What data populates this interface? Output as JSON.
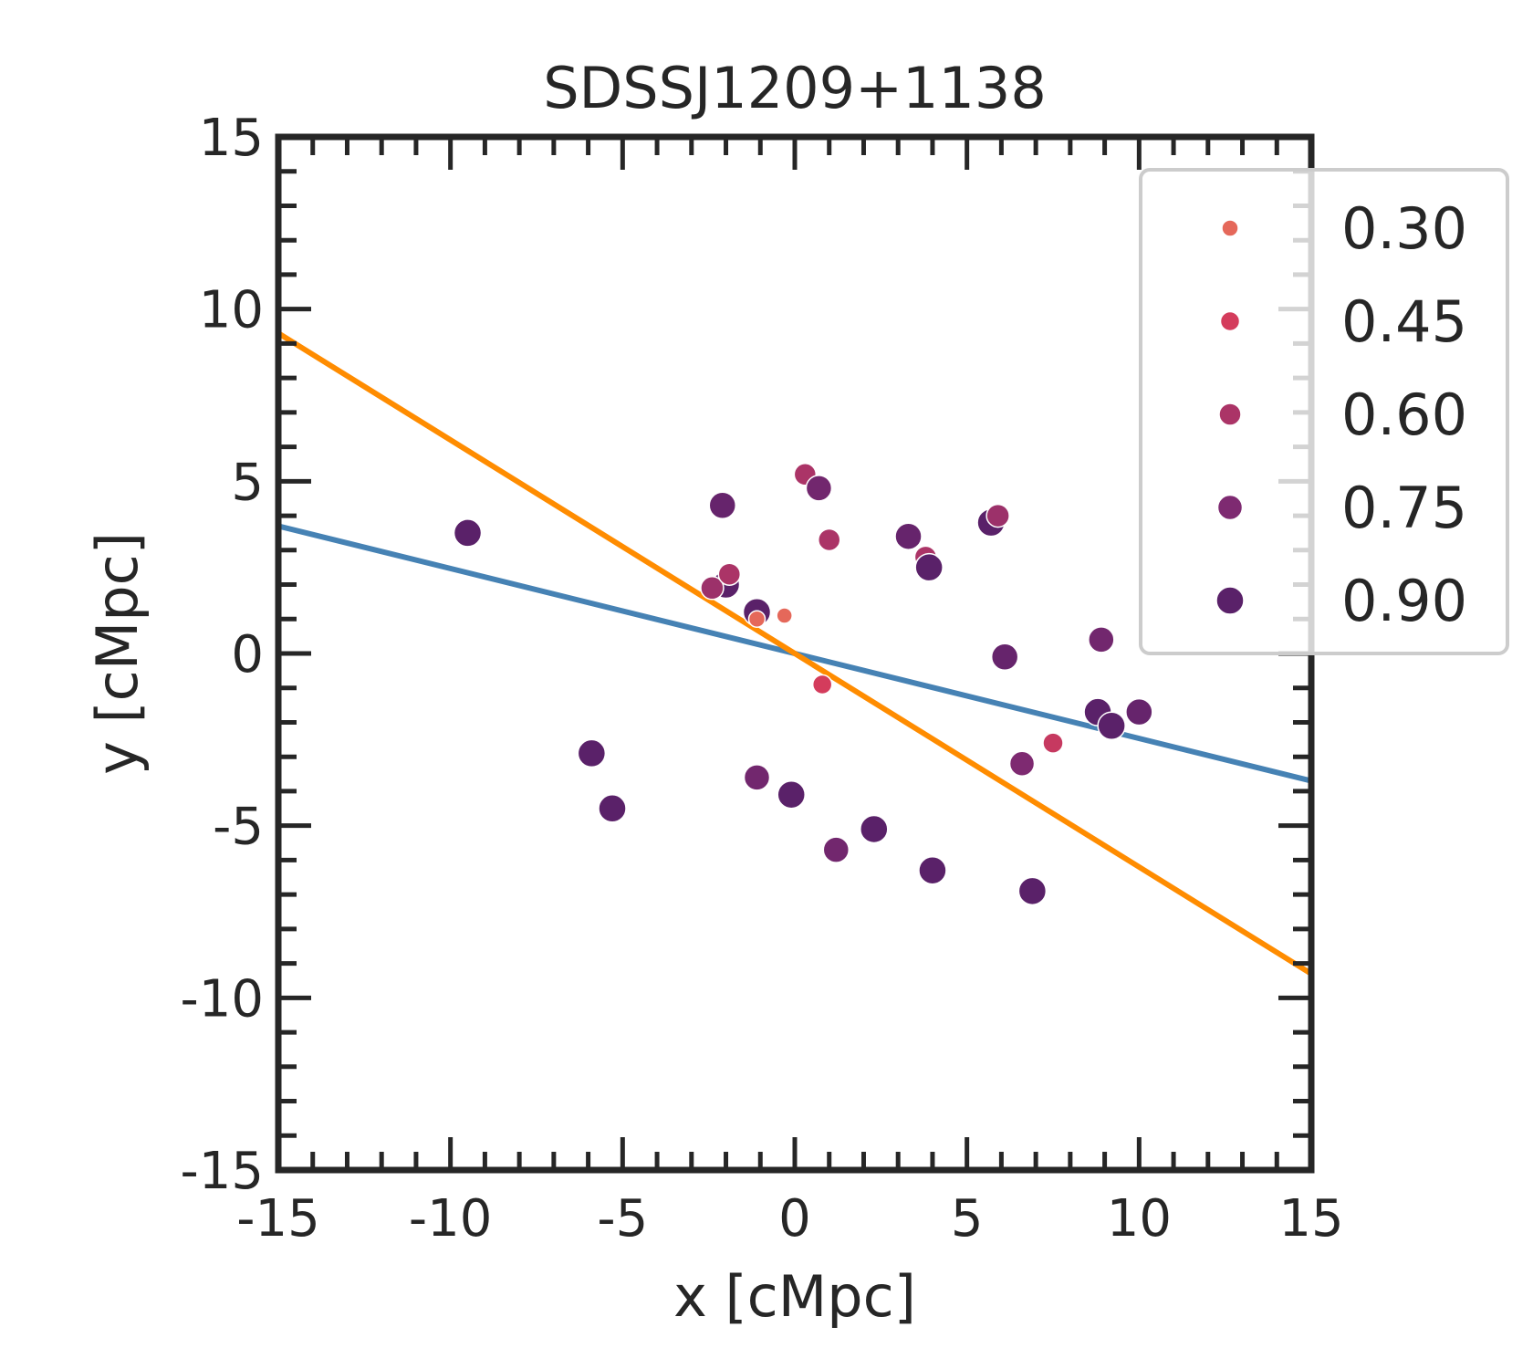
{
  "chart_data": {
    "type": "scatter",
    "title": "SDSSJ1209+1138",
    "xlabel": "x [cMpc]",
    "ylabel": "y [cMpc]",
    "xlim": [
      -15,
      15
    ],
    "ylim": [
      -15,
      15
    ],
    "xticks": [
      "-15",
      "-10",
      "-5",
      "0",
      "5",
      "10",
      "15"
    ],
    "yticks": [
      "-15",
      "-10",
      "-5",
      "0",
      "5",
      "10",
      "15"
    ],
    "grid": false,
    "legend": {
      "placement": "upper-right-outside",
      "entries": [
        {
          "label": "0.30",
          "value": 0.3,
          "color": "#e5685a"
        },
        {
          "label": "0.45",
          "value": 0.45,
          "color": "#d43c5c"
        },
        {
          "label": "0.60",
          "value": 0.6,
          "color": "#ab3467"
        },
        {
          "label": "0.75",
          "value": 0.75,
          "color": "#7e2a71"
        },
        {
          "label": "0.90",
          "value": 0.9,
          "color": "#5a2169"
        }
      ]
    },
    "lines": [
      {
        "name": "blue-fit",
        "color": "#4682b4",
        "x": [
          -15,
          15
        ],
        "y": [
          3.7,
          -3.7
        ]
      },
      {
        "name": "orange-fit",
        "color": "#ff8c00",
        "x": [
          -15,
          15
        ],
        "y": [
          9.3,
          -9.3
        ]
      }
    ],
    "points": [
      {
        "x": -9.5,
        "y": 3.5,
        "s": 0.9
      },
      {
        "x": -2.1,
        "y": 4.3,
        "s": 0.85
      },
      {
        "x": -2.0,
        "y": 2.0,
        "s": 0.9
      },
      {
        "x": -2.4,
        "y": 1.9,
        "s": 0.65
      },
      {
        "x": -1.9,
        "y": 2.3,
        "s": 0.6
      },
      {
        "x": -1.1,
        "y": 1.2,
        "s": 0.9
      },
      {
        "x": -1.1,
        "y": 1.0,
        "s": 0.3
      },
      {
        "x": -0.3,
        "y": 1.1,
        "s": 0.25
      },
      {
        "x": 0.3,
        "y": 5.2,
        "s": 0.6
      },
      {
        "x": 0.7,
        "y": 4.8,
        "s": 0.8
      },
      {
        "x": 1.0,
        "y": 3.3,
        "s": 0.6
      },
      {
        "x": 0.8,
        "y": -0.9,
        "s": 0.45
      },
      {
        "x": 3.3,
        "y": 3.4,
        "s": 0.85
      },
      {
        "x": 3.8,
        "y": 2.8,
        "s": 0.6
      },
      {
        "x": 3.9,
        "y": 2.5,
        "s": 0.9
      },
      {
        "x": 5.7,
        "y": 3.8,
        "s": 0.9
      },
      {
        "x": 5.9,
        "y": 4.0,
        "s": 0.65
      },
      {
        "x": 6.1,
        "y": -0.1,
        "s": 0.85
      },
      {
        "x": 8.9,
        "y": 0.4,
        "s": 0.8
      },
      {
        "x": 8.8,
        "y": -1.7,
        "s": 0.9
      },
      {
        "x": 9.2,
        "y": -2.1,
        "s": 0.9
      },
      {
        "x": 10.0,
        "y": -1.7,
        "s": 0.85
      },
      {
        "x": 7.5,
        "y": -2.6,
        "s": 0.5
      },
      {
        "x": 6.6,
        "y": -3.2,
        "s": 0.75
      },
      {
        "x": -5.9,
        "y": -2.9,
        "s": 0.9
      },
      {
        "x": -5.3,
        "y": -4.5,
        "s": 0.9
      },
      {
        "x": -1.1,
        "y": -3.6,
        "s": 0.8
      },
      {
        "x": -0.1,
        "y": -4.1,
        "s": 0.9
      },
      {
        "x": 1.2,
        "y": -5.7,
        "s": 0.8
      },
      {
        "x": 2.3,
        "y": -5.1,
        "s": 0.9
      },
      {
        "x": 4.0,
        "y": -6.3,
        "s": 0.9
      },
      {
        "x": 6.9,
        "y": -6.9,
        "s": 0.9
      }
    ]
  }
}
